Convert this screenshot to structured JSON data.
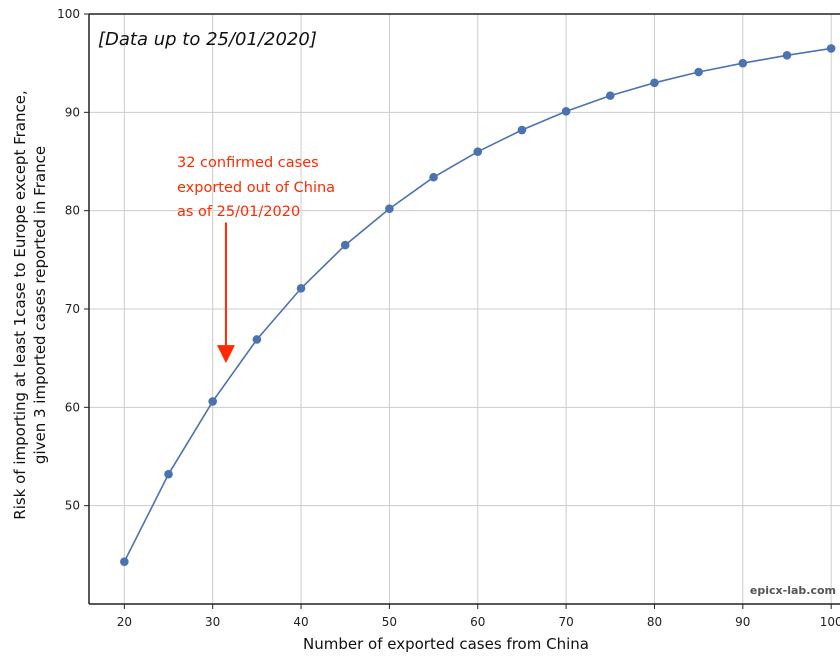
{
  "chart_data": {
    "type": "line",
    "title": "",
    "xlabel": "Number of exported cases from China",
    "ylabel_lines": [
      "Risk of importing at least 1case to Europe except France,",
      "given 3 imported cases reported in France"
    ],
    "xlim": [
      16,
      101
    ],
    "ylim": [
      40,
      100
    ],
    "x_ticks": [
      20,
      30,
      40,
      50,
      60,
      70,
      80,
      90,
      100
    ],
    "y_ticks": [
      50,
      60,
      70,
      80,
      90,
      100
    ],
    "grid": true,
    "series": [
      {
        "x": [
          20,
          25,
          30,
          35,
          40,
          45,
          50,
          55,
          60,
          65,
          70,
          75,
          80,
          85,
          90,
          95,
          100
        ],
        "values": [
          44.3,
          53.2,
          60.6,
          66.9,
          72.1,
          76.5,
          80.2,
          83.4,
          86.0,
          88.2,
          90.1,
          91.7,
          93.0,
          94.1,
          95.0,
          95.8,
          96.5
        ],
        "color": "#4c72b0"
      }
    ],
    "annotations": {
      "data_note": "[Data up to 25/01/2020]",
      "arrow_note_lines": [
        "32 confirmed cases",
        "exported out of China",
        "as of 25/01/2020"
      ],
      "arrow_x": 31.5,
      "arrow_from_y": 78.8,
      "arrow_to_y": 64.5,
      "arrow_color": "#ff2a00"
    },
    "watermark": "epicx-lab.com"
  }
}
